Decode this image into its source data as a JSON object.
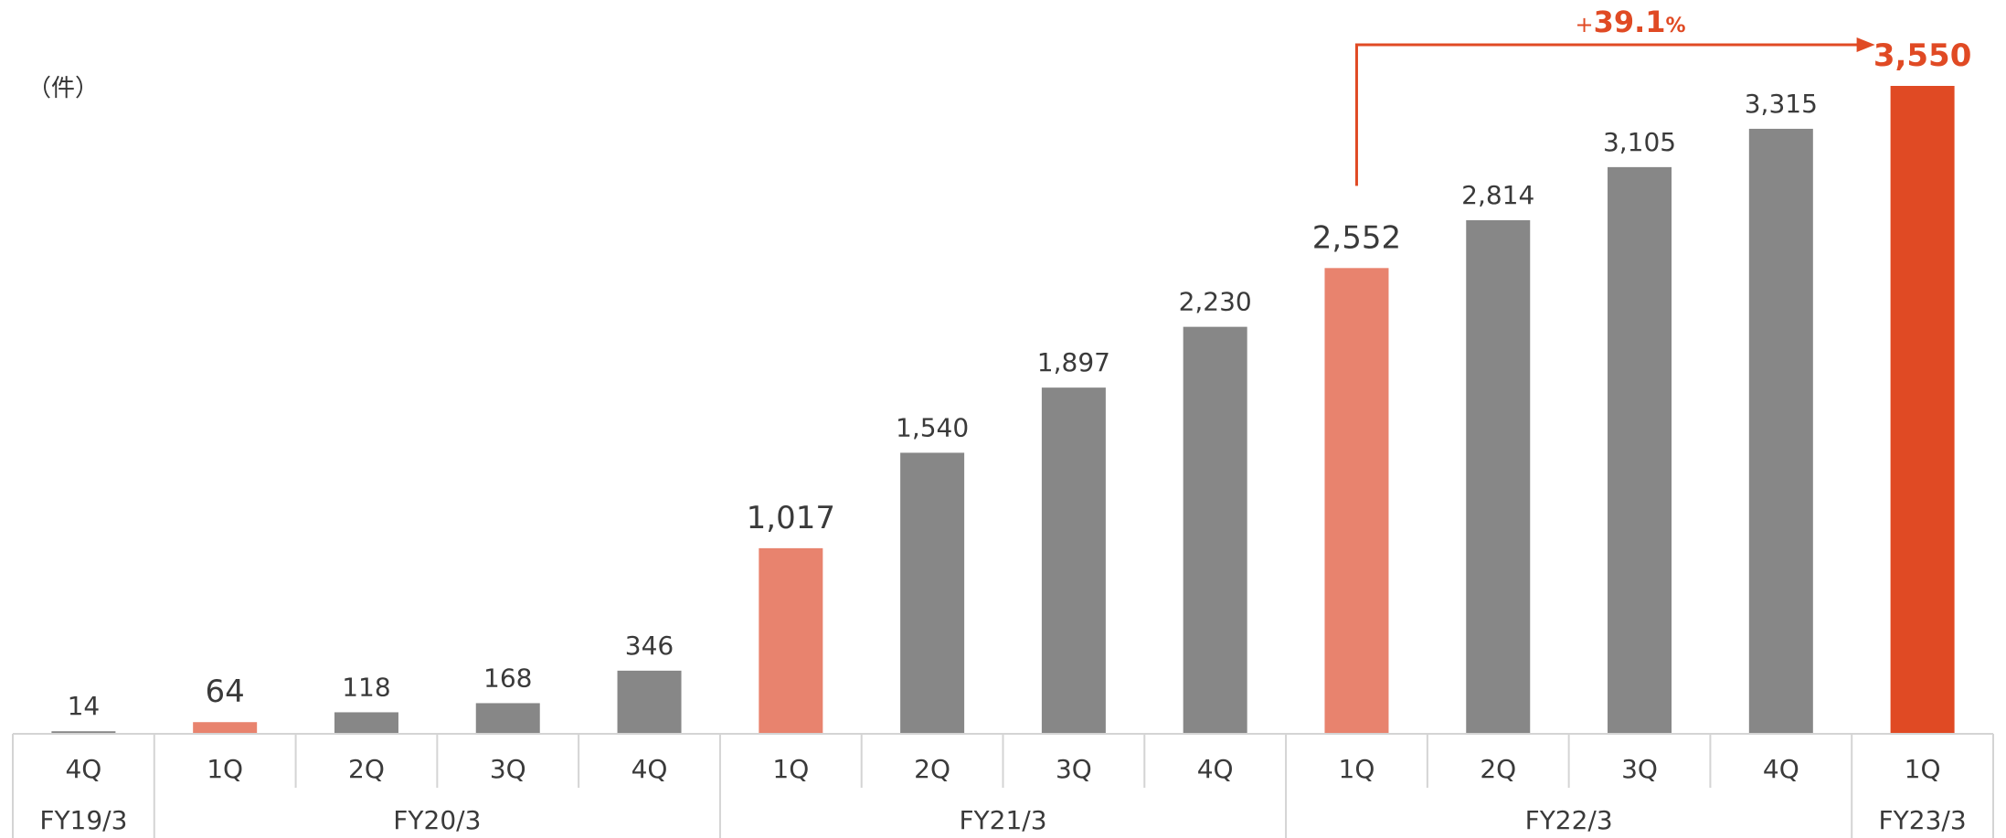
{
  "unit_label": "（件）",
  "growth_label": {
    "sign": "+",
    "number": "39.1",
    "percent": "%"
  },
  "chart_data": {
    "type": "bar",
    "categories": [
      "4Q",
      "1Q",
      "2Q",
      "3Q",
      "4Q",
      "1Q",
      "2Q",
      "3Q",
      "4Q",
      "1Q",
      "2Q",
      "3Q",
      "4Q",
      "1Q"
    ],
    "groups": [
      {
        "label": "FY19/3",
        "count": 1
      },
      {
        "label": "FY20/3",
        "count": 4
      },
      {
        "label": "FY21/3",
        "count": 4
      },
      {
        "label": "FY22/3",
        "count": 4
      },
      {
        "label": "FY23/3",
        "count": 1
      }
    ],
    "values": [
      14,
      64,
      118,
      168,
      346,
      1017,
      1540,
      1897,
      2230,
      2552,
      2814,
      3105,
      3315,
      3550
    ],
    "value_labels": [
      "14",
      "64",
      "118",
      "168",
      "346",
      "1,017",
      "1,540",
      "1,897",
      "2,230",
      "2,552",
      "2,814",
      "3,105",
      "3,315",
      "3,550"
    ],
    "highlight": [
      "none",
      "light",
      "none",
      "none",
      "none",
      "light",
      "none",
      "none",
      "none",
      "light",
      "none",
      "none",
      "none",
      "strong"
    ],
    "ylim": [
      0,
      3550
    ],
    "grid": false,
    "annotation": {
      "from_index": 9,
      "to_index": 13,
      "text": "+39.1%"
    },
    "colors": {
      "default": "#878787",
      "light": "#E8836E",
      "strong": "#E04A24",
      "text": "#3a3a3a",
      "axis": "#d4d4d4"
    }
  }
}
